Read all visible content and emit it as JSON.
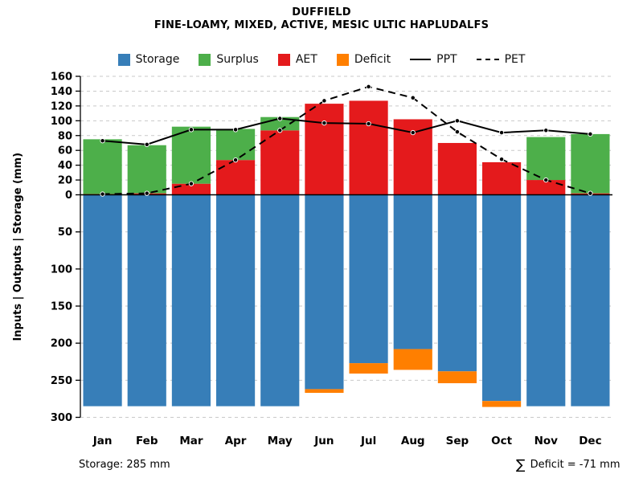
{
  "title": "DUFFIELD",
  "subtitle": "FINE-LOAMY, MIXED, ACTIVE, MESIC ULTIC HAPLUDALFS",
  "legend": [
    {
      "label": "Storage",
      "type": "swatch",
      "color": "#377EB8"
    },
    {
      "label": "Surplus",
      "type": "swatch",
      "color": "#4DAF4A"
    },
    {
      "label": "AET",
      "type": "swatch",
      "color": "#E41A1C"
    },
    {
      "label": "Deficit",
      "type": "swatch",
      "color": "#FF7F00"
    },
    {
      "label": "PPT",
      "type": "line-solid"
    },
    {
      "label": "PET",
      "type": "line-dashed"
    }
  ],
  "footer": {
    "storage": "Storage: 285 mm",
    "sigma": "∑",
    "deficit": " Deficit = -71 mm"
  },
  "chart_data": {
    "type": "bar",
    "subtype": "stacked water-balance bars with overlaid lines; lower axis inverted (soil storage depth)",
    "title": "DUFFIELD",
    "subtitle": "FINE-LOAMY, MIXED, ACTIVE, MESIC ULTIC HAPLUDALFS",
    "ylabel": "Inputs | Outputs | Storage   (mm)",
    "categories": [
      "Jan",
      "Feb",
      "Mar",
      "Apr",
      "May",
      "Jun",
      "Jul",
      "Aug",
      "Sep",
      "Oct",
      "Nov",
      "Dec"
    ],
    "y_upper": {
      "min": 0,
      "max": 160,
      "step": 20
    },
    "y_lower": {
      "min": 0,
      "max": 300,
      "step": 50,
      "inverted": true
    },
    "grid": "dashed horizontal gridlines",
    "legend_position": "top center",
    "series": [
      {
        "name": "Storage",
        "kind": "bar-down",
        "color": "#377EB8",
        "values": [
          285,
          285,
          285,
          285,
          285,
          262,
          227,
          208,
          238,
          278,
          285,
          285
        ]
      },
      {
        "name": "Deficit",
        "kind": "bar-down-stacked",
        "color": "#FF7F00",
        "values": [
          0,
          0,
          0,
          0,
          0,
          5,
          14,
          28,
          16,
          8,
          0,
          0
        ]
      },
      {
        "name": "AET",
        "kind": "bar-up",
        "color": "#E41A1C",
        "values": [
          1,
          2,
          15,
          47,
          87,
          123,
          127,
          102,
          70,
          44,
          20,
          2
        ]
      },
      {
        "name": "Surplus",
        "kind": "bar-up-stacked",
        "color": "#4DAF4A",
        "values": [
          74,
          65,
          77,
          42,
          18,
          0,
          0,
          0,
          0,
          0,
          58,
          80
        ]
      },
      {
        "name": "PPT",
        "kind": "line-solid",
        "color": "#000000",
        "values": [
          73,
          68,
          88,
          88,
          103,
          97,
          96,
          84,
          100,
          84,
          87,
          82
        ]
      },
      {
        "name": "PET",
        "kind": "line-dashed",
        "color": "#000000",
        "values": [
          1,
          2,
          15,
          47,
          87,
          127,
          146,
          131,
          85,
          48,
          20,
          2
        ]
      }
    ],
    "annotations": {
      "storage_total": "Storage: 285 mm",
      "deficit_sum": "∑ Deficit = -71 mm"
    }
  }
}
